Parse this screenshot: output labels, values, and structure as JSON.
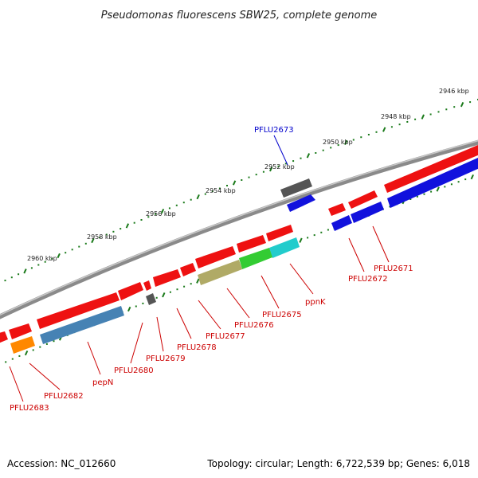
{
  "title": "Pseudomonas fluorescens SBW25, complete genome",
  "accession": "Accession: NC_012660",
  "summary": "Topology: circular; Length: 6,722,539 bp; Genes: 6,018",
  "ruler_ticks": [
    "2946 kbp",
    "2948 kbp",
    "2950 kbp",
    "2952 kbp",
    "2954 kbp",
    "2956 kbp",
    "2958 kbp",
    "2960 kbp"
  ],
  "gene_labels": [
    {
      "text": "PFLU2673",
      "color": "#0000cc"
    },
    {
      "text": "PFLU2671",
      "color": "#cc0000"
    },
    {
      "text": "PFLU2672",
      "color": "#cc0000"
    },
    {
      "text": "ppnK",
      "color": "#cc0000"
    },
    {
      "text": "PFLU2675",
      "color": "#cc0000"
    },
    {
      "text": "PFLU2676",
      "color": "#cc0000"
    },
    {
      "text": "PFLU2677",
      "color": "#cc0000"
    },
    {
      "text": "PFLU2678",
      "color": "#cc0000"
    },
    {
      "text": "PFLU2679",
      "color": "#cc0000"
    },
    {
      "text": "PFLU2680",
      "color": "#cc0000"
    },
    {
      "text": "pepN",
      "color": "#cc0000"
    },
    {
      "text": "PFLU2682",
      "color": "#cc0000"
    },
    {
      "text": "PFLU2683",
      "color": "#cc0000"
    }
  ],
  "colors": {
    "backbone": "#8a8a8a",
    "tick": "#1a7a1a",
    "forward_cds": "#ee1111",
    "reverse_cds": "#1111dd",
    "grey_feature": "#555555",
    "olive_feature": "#b0aa66",
    "green_feature": "#33cc33",
    "cyan_feature": "#22cccc",
    "steelblue_feature": "#4682b4",
    "orange_feature": "#ff8800"
  }
}
